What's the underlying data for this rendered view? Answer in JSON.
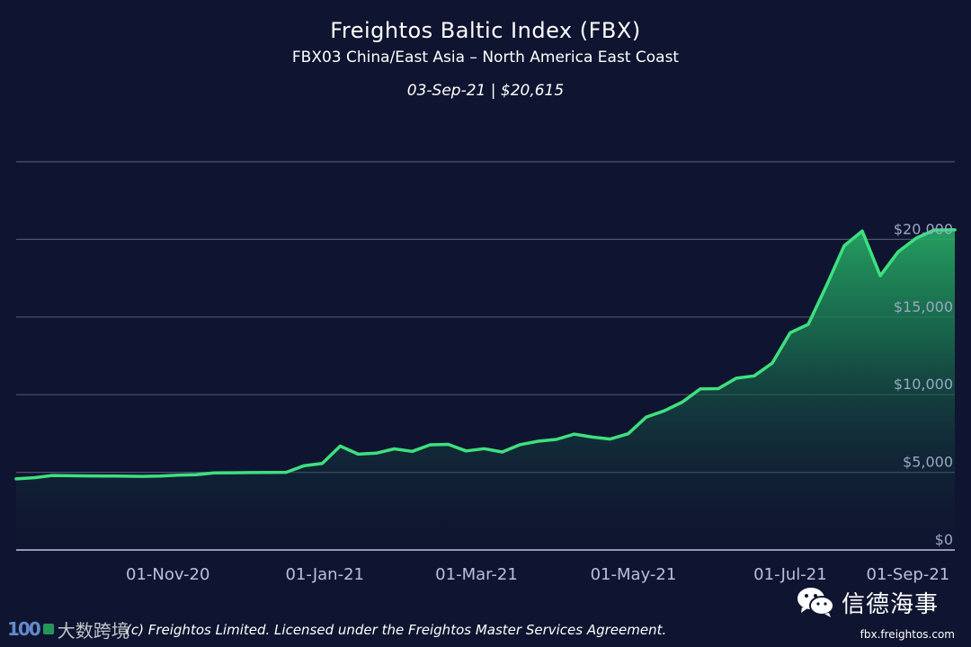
{
  "header": {
    "title": "Freightos Baltic Index (FBX)",
    "subtitle": "FBX03 China/East Asia – North America East Coast",
    "latest": "03-Sep-21 | $20,615"
  },
  "footer": {
    "copyright": "(c) Freightos Limited. Licensed under the Freightos Master Services Agreement.",
    "url": "fbx.freightos.com"
  },
  "watermarks": {
    "left_text": "大数跨境",
    "left_num": "100",
    "right_text": "信德海事"
  },
  "colors": {
    "background": "#0f1530",
    "line": "#3ee07e",
    "grid": "#4a5372",
    "axis": "#c8cee0"
  },
  "chart_data": {
    "type": "area",
    "title": "Freightos Baltic Index (FBX)",
    "subtitle": "FBX03 China/East Asia – North America East Coast",
    "xlabel": "",
    "ylabel": "",
    "ylim": [
      0,
      25000
    ],
    "xlim": [
      "2020-09-03",
      "2021-09-03"
    ],
    "grid": true,
    "y_axis_position": "right",
    "yticks": [
      {
        "value": 0,
        "label": "$0"
      },
      {
        "value": 5000,
        "label": "$5,000"
      },
      {
        "value": 10000,
        "label": "$10,000"
      },
      {
        "value": 15000,
        "label": "$15,000"
      },
      {
        "value": 20000,
        "label": "$20,000"
      }
    ],
    "xticks": [
      {
        "date": "2020-11-01",
        "label": "01-Nov-20"
      },
      {
        "date": "2021-01-01",
        "label": "01-Jan-21"
      },
      {
        "date": "2021-03-01",
        "label": "01-Mar-21"
      },
      {
        "date": "2021-05-01",
        "label": "01-May-21"
      },
      {
        "date": "2021-07-01",
        "label": "01-Jul-21"
      },
      {
        "date": "2021-09-01",
        "label": "01-Sep-21"
      }
    ],
    "series": [
      {
        "x": [
          "2020-09-03",
          "2020-09-10",
          "2020-09-17",
          "2020-09-24",
          "2020-10-01",
          "2020-10-08",
          "2020-10-15",
          "2020-10-22",
          "2020-10-29",
          "2020-11-05",
          "2020-11-12",
          "2020-11-19",
          "2020-11-26",
          "2020-12-03",
          "2020-12-10",
          "2020-12-17",
          "2020-12-24",
          "2020-12-31",
          "2021-01-07",
          "2021-01-14",
          "2021-01-21",
          "2021-01-28",
          "2021-02-04",
          "2021-02-11",
          "2021-02-18",
          "2021-02-25",
          "2021-03-04",
          "2021-03-11",
          "2021-03-18",
          "2021-03-25",
          "2021-04-01",
          "2021-04-08",
          "2021-04-15",
          "2021-04-22",
          "2021-04-29",
          "2021-05-06",
          "2021-05-13",
          "2021-05-20",
          "2021-05-27",
          "2021-06-03",
          "2021-06-10",
          "2021-06-17",
          "2021-06-24",
          "2021-07-01",
          "2021-07-08",
          "2021-07-15",
          "2021-07-22",
          "2021-07-29",
          "2021-08-05",
          "2021-08-12",
          "2021-08-19",
          "2021-08-26",
          "2021-09-03"
        ],
        "values": [
          4580,
          4650,
          4800,
          4780,
          4770,
          4760,
          4750,
          4740,
          4760,
          4820,
          4850,
          4960,
          4970,
          4980,
          4990,
          5000,
          5430,
          5570,
          6690,
          6170,
          6230,
          6510,
          6350,
          6770,
          6800,
          6380,
          6520,
          6310,
          6780,
          7000,
          7120,
          7460,
          7270,
          7140,
          7480,
          8560,
          8960,
          9520,
          10370,
          10390,
          11060,
          11210,
          12030,
          13990,
          14530,
          16990,
          19590,
          20540,
          17660,
          19210,
          20080,
          20600,
          20615
        ]
      }
    ]
  }
}
